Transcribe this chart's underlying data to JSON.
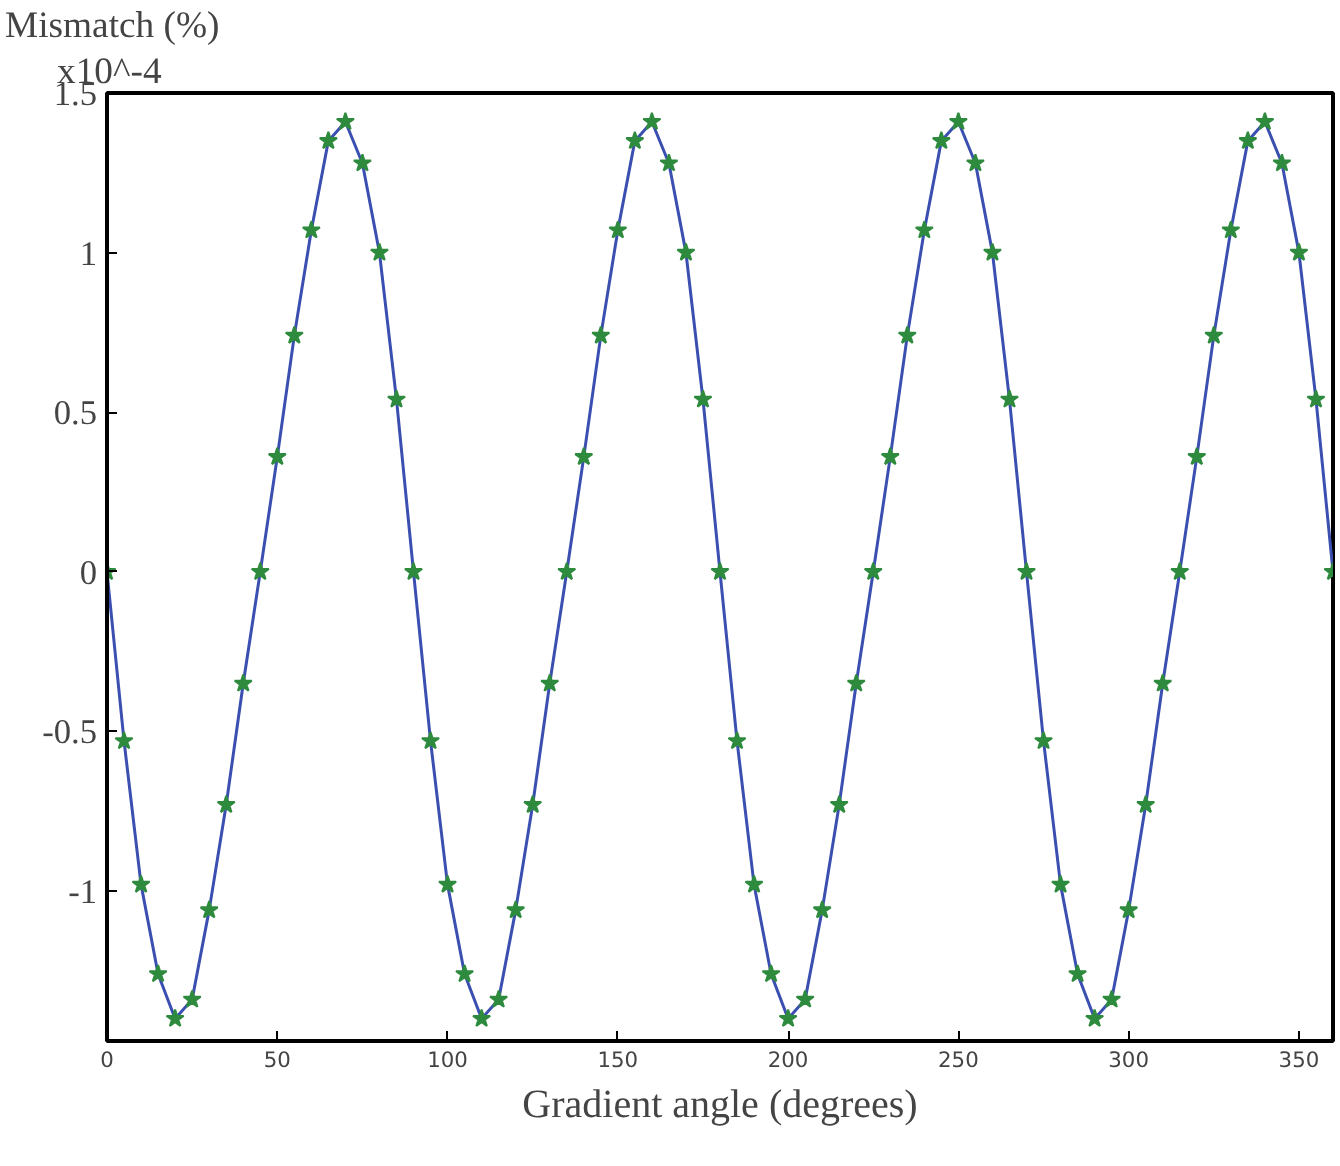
{
  "chart_data": {
    "type": "line",
    "xlabel": "Gradient angle (degrees)",
    "ylabel": "Mismatch (%)",
    "annotations": [
      "x10^-4"
    ],
    "x": [
      0,
      5,
      10,
      15,
      20,
      25,
      30,
      35,
      40,
      45,
      50,
      55,
      60,
      65,
      70,
      75,
      80,
      85,
      90,
      95,
      100,
      105,
      110,
      115,
      120,
      125,
      130,
      135,
      140,
      145,
      150,
      155,
      160,
      165,
      170,
      175,
      180,
      185,
      190,
      195,
      200,
      205,
      210,
      215,
      220,
      225,
      230,
      235,
      240,
      245,
      250,
      255,
      260,
      265,
      270,
      275,
      280,
      285,
      290,
      295,
      300,
      305,
      310,
      315,
      320,
      325,
      330,
      335,
      340,
      345,
      350,
      355,
      360
    ],
    "series": [
      {
        "marker": "none",
        "color": "#3a4fb0",
        "values": [
          0,
          -0.53,
          -0.98,
          -1.26,
          -1.4,
          -1.34,
          -1.06,
          -0.73,
          -0.35,
          0,
          0.36,
          0.74,
          1.07,
          1.35,
          1.41,
          1.28,
          1.0,
          0.54,
          0,
          -0.53,
          -0.98,
          -1.26,
          -1.4,
          -1.34,
          -1.06,
          -0.73,
          -0.35,
          0,
          0.36,
          0.74,
          1.07,
          1.35,
          1.41,
          1.28,
          1.0,
          0.54,
          0,
          -0.53,
          -0.98,
          -1.26,
          -1.4,
          -1.34,
          -1.06,
          -0.73,
          -0.35,
          0,
          0.36,
          0.74,
          1.07,
          1.35,
          1.41,
          1.28,
          1.0,
          0.54,
          0,
          -0.53,
          -0.98,
          -1.26,
          -1.4,
          -1.34,
          -1.06,
          -0.73,
          -0.35,
          0,
          0.36,
          0.74,
          1.07,
          1.35,
          1.41,
          1.28,
          1.0,
          0.54,
          0
        ]
      },
      {
        "type": "scatter",
        "color": "#2e8b3e",
        "values": [
          0,
          -0.53,
          -0.98,
          -1.26,
          -1.4,
          -1.34,
          -1.06,
          -0.73,
          -0.35,
          0,
          0.36,
          0.74,
          1.07,
          1.35,
          1.41,
          1.28,
          1.0,
          0.54,
          0,
          -0.53,
          -0.98,
          -1.26,
          -1.4,
          -1.34,
          -1.06,
          -0.73,
          -0.35,
          0,
          0.36,
          0.74,
          1.07,
          1.35,
          1.41,
          1.28,
          1.0,
          0.54,
          0,
          -0.53,
          -0.98,
          -1.26,
          -1.4,
          -1.34,
          -1.06,
          -0.73,
          -0.35,
          0,
          0.36,
          0.74,
          1.07,
          1.35,
          1.41,
          1.28,
          1.0,
          0.54,
          0,
          -0.53,
          -0.98,
          -1.26,
          -1.4,
          -1.34,
          -1.06,
          -0.73,
          -0.35,
          0,
          0.36,
          0.74,
          1.07,
          1.35,
          1.41,
          1.28,
          1.0,
          0.54,
          0
        ]
      }
    ],
    "xlim": [
      0,
      360
    ],
    "xticks": [
      0,
      50,
      100,
      150,
      200,
      250,
      300,
      350
    ],
    "ylim": [
      -1.47,
      1.5
    ],
    "yticks": [
      -1,
      -0.5,
      0,
      0.5,
      1,
      1.5
    ],
    "grid": false,
    "marker": "star",
    "line_style": "solid"
  }
}
